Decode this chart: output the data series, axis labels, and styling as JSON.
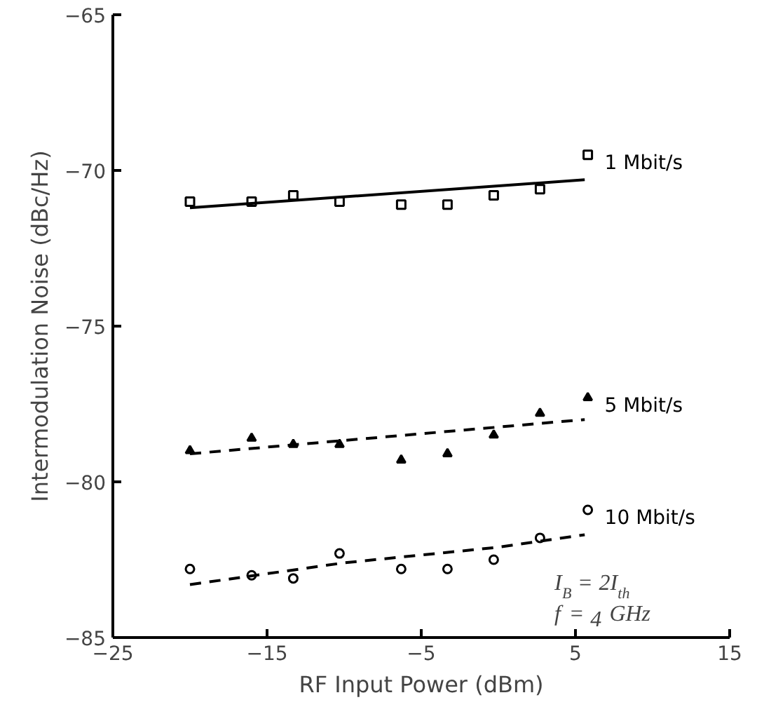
{
  "chart_data": {
    "type": "scatter",
    "xlabel": "RF Input Power (dBm)",
    "ylabel": "Intermodulation Noise (dBc/Hz)",
    "xlim": [
      -25,
      15
    ],
    "xticks": [
      -25,
      -15,
      -5,
      5,
      15
    ],
    "ylim": [
      -85,
      -65
    ],
    "yticks": [
      -85,
      -80,
      -75,
      -70,
      -65
    ],
    "grid": false,
    "series": [
      {
        "name": "1 Mbit/s",
        "marker": "square",
        "color": "#000000",
        "x": [
          -20,
          -16,
          -13.3,
          -10.3,
          -6.3,
          -3.3,
          -0.3,
          2.7,
          5.8
        ],
        "values": [
          -71.0,
          -71.0,
          -70.8,
          -71.0,
          -71.1,
          -71.1,
          -70.8,
          -70.6,
          -69.5
        ]
      },
      {
        "name": "5 Mbit/s",
        "marker": "triangle",
        "color": "#000000",
        "x": [
          -20,
          -16,
          -13.3,
          -10.3,
          -6.3,
          -3.3,
          -0.3,
          2.7,
          5.8
        ],
        "values": [
          -79.0,
          -78.6,
          -78.8,
          -78.8,
          -79.3,
          -79.1,
          -78.5,
          -77.8,
          -77.3
        ]
      },
      {
        "name": "10 Mbit/s",
        "marker": "circle",
        "color": "#000000",
        "x": [
          -20,
          -16,
          -13.3,
          -10.3,
          -6.3,
          -3.3,
          -0.3,
          2.7,
          5.8
        ],
        "values": [
          -82.8,
          -83.0,
          -83.1,
          -82.3,
          -82.8,
          -82.8,
          -82.5,
          -81.8,
          -80.9
        ]
      },
      {
        "type": "line",
        "line_style": "solid",
        "color": "#000000",
        "x": [
          -20,
          5.6
        ],
        "values": [
          -71.2,
          -70.3
        ]
      },
      {
        "type": "line",
        "line_style": "dashed",
        "color": "#000000",
        "x": [
          -20,
          5.6
        ],
        "values": [
          -79.1,
          -78.0
        ]
      },
      {
        "type": "line",
        "line_style": "dashed",
        "color": "#000000",
        "x": [
          -20,
          -10,
          0,
          5.6
        ],
        "values": [
          -83.3,
          -82.6,
          -82.1,
          -81.7
        ]
      }
    ],
    "annotations": [
      "I$_{B}$ = 2I$_{th}$",
      "f = 4 GHz"
    ]
  }
}
